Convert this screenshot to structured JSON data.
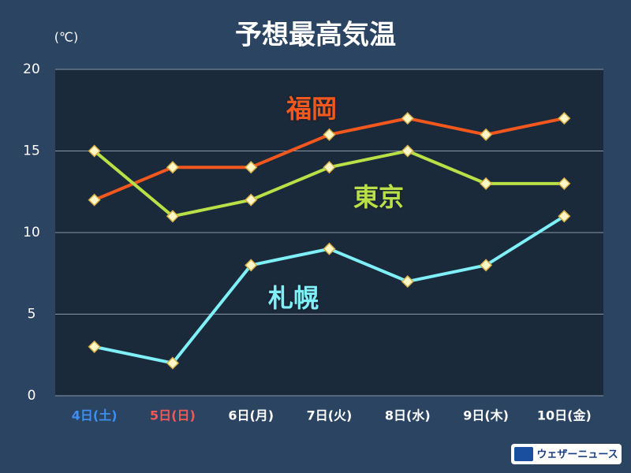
{
  "chart_data": {
    "type": "line",
    "title": "予想最高気温",
    "y_label": "(℃)",
    "categories": [
      "4日(土)",
      "5日(日)",
      "6日(月)",
      "7日(火)",
      "8日(水)",
      "9日(木)",
      "10日(金)"
    ],
    "category_colors": [
      "#3d8ff0",
      "#f25a5a",
      "#ffffff",
      "#ffffff",
      "#ffffff",
      "#ffffff",
      "#ffffff"
    ],
    "series": [
      {
        "name": "福岡",
        "color": "#f2581e",
        "values": [
          12,
          14,
          14,
          16,
          17,
          16,
          17
        ]
      },
      {
        "name": "東京",
        "color": "#b9e047",
        "values": [
          15,
          11,
          12,
          14,
          15,
          13,
          13
        ]
      },
      {
        "name": "札幌",
        "color": "#7ff0f8",
        "values": [
          3,
          2,
          8,
          9,
          7,
          8,
          11
        ]
      }
    ],
    "ylim": [
      0,
      20
    ],
    "yticks": [
      0,
      5,
      10,
      15,
      20
    ],
    "grid": true
  },
  "footer": {
    "brand": "ウェザーニュース"
  }
}
